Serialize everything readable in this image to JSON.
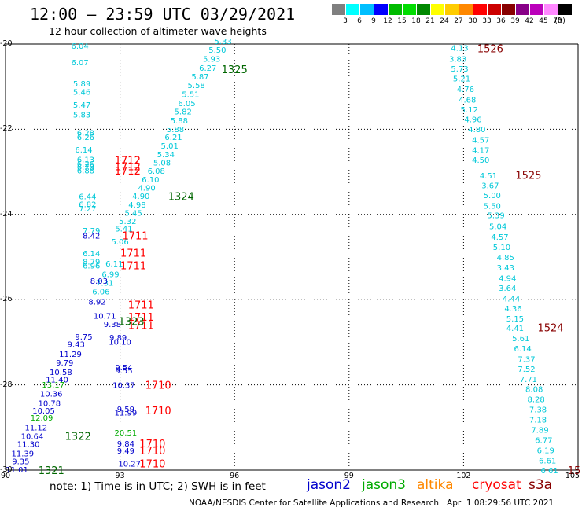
{
  "header": {
    "title": "12:00 – 23:59 UTC 03/29/2021",
    "subtitle": "12 hour collection of altimeter wave heights"
  },
  "scale": {
    "colors": [
      "#7f7f7f",
      "#00ffff",
      "#00bfff",
      "#0000ff",
      "#00bb00",
      "#00dd00",
      "#008800",
      "#ffff00",
      "#ffcc00",
      "#ff8800",
      "#ff0000",
      "#cc0000",
      "#880000",
      "#880088",
      "#bb00bb",
      "#ff88ff",
      "#000000"
    ],
    "labels": [
      "3",
      "6",
      "9",
      "12",
      "15",
      "18",
      "21",
      "24",
      "27",
      "30",
      "33",
      "36",
      "39",
      "42",
      "45",
      "70",
      "(ft)"
    ]
  },
  "axes": {
    "lat_labels": [
      "-20",
      "-22",
      "-24",
      "-26",
      "-28",
      "-30"
    ],
    "lon_labels": [
      "90",
      "93",
      "96",
      "99",
      "102",
      "105"
    ]
  },
  "colors": {
    "jason2": "#0000cc",
    "jason3": "#00aa00",
    "altika": "#ff8800",
    "cryosat": "#ff0000",
    "s3a": "#880000",
    "cyan": "#00c8d8",
    "darkgreen": "#006600"
  },
  "tracks": [
    {
      "color": "#00c8d8",
      "values": [
        {
          "t": "5.33",
          "lon": 95.7,
          "lat": -19.93
        },
        {
          "t": "5.50",
          "lon": 95.55,
          "lat": -20.13
        },
        {
          "t": "5.93",
          "lon": 95.4,
          "lat": -20.34
        },
        {
          "t": "6.27",
          "lon": 95.3,
          "lat": -20.55
        },
        {
          "t": "5.87",
          "lon": 95.1,
          "lat": -20.76
        },
        {
          "t": "5.58",
          "lon": 95.0,
          "lat": -20.96
        },
        {
          "t": "5.51",
          "lon": 94.85,
          "lat": -21.17
        },
        {
          "t": "6.05",
          "lon": 94.75,
          "lat": -21.38
        },
        {
          "t": "5.82",
          "lon": 94.65,
          "lat": -21.58
        },
        {
          "t": "5.88",
          "lon": 94.55,
          "lat": -21.79
        },
        {
          "t": "5.88",
          "lon": 94.45,
          "lat": -21.99
        },
        {
          "t": "6.21",
          "lon": 94.4,
          "lat": -22.18
        },
        {
          "t": "5.01",
          "lon": 94.3,
          "lat": -22.38
        },
        {
          "t": "5.34",
          "lon": 94.2,
          "lat": -22.58
        },
        {
          "t": "5.08",
          "lon": 94.1,
          "lat": -22.78
        },
        {
          "t": "6.08",
          "lon": 93.95,
          "lat": -22.97
        },
        {
          "t": "6.10",
          "lon": 93.8,
          "lat": -23.17
        },
        {
          "t": "4.90",
          "lon": 93.7,
          "lat": -23.37
        },
        {
          "t": "4.90",
          "lon": 93.55,
          "lat": -23.56
        },
        {
          "t": "4.98",
          "lon": 93.45,
          "lat": -23.76
        },
        {
          "t": "5.45",
          "lon": 93.35,
          "lat": -23.96
        },
        {
          "t": "5.32",
          "lon": 93.2,
          "lat": -24.15
        },
        {
          "t": "5.41",
          "lon": 93.1,
          "lat": -24.33
        },
        {
          "t": "5.06",
          "lon": 93.0,
          "lat": -24.63
        },
        {
          "t": "6.11",
          "lon": 92.85,
          "lat": -25.15
        },
        {
          "t": "6.99",
          "lon": 92.75,
          "lat": -25.4
        },
        {
          "t": "7.31",
          "lon": 92.6,
          "lat": -25.6
        },
        {
          "t": "6.06",
          "lon": 92.5,
          "lat": -25.8
        }
      ]
    },
    {
      "color": "#00c8d8",
      "values": [
        {
          "t": "6.04",
          "lon": 91.95,
          "lat": -20.04
        },
        {
          "t": "6.07",
          "lon": 91.95,
          "lat": -20.42
        },
        {
          "t": "5.89",
          "lon": 92.0,
          "lat": -20.92
        },
        {
          "t": "5.46",
          "lon": 92.0,
          "lat": -21.12
        },
        {
          "t": "5.47",
          "lon": 92.0,
          "lat": -21.42
        },
        {
          "t": "5.83",
          "lon": 92.0,
          "lat": -21.65
        },
        {
          "t": "6.28",
          "lon": 92.1,
          "lat": -22.08
        },
        {
          "t": "6.26",
          "lon": 92.1,
          "lat": -22.18
        },
        {
          "t": "6.14",
          "lon": 92.05,
          "lat": -22.47
        },
        {
          "t": "6.13",
          "lon": 92.1,
          "lat": -22.7
        },
        {
          "t": "6.26",
          "lon": 92.1,
          "lat": -22.8
        },
        {
          "t": "6.79",
          "lon": 92.1,
          "lat": -22.88
        },
        {
          "t": "6.88",
          "lon": 92.1,
          "lat": -22.96
        },
        {
          "t": "6.44",
          "lon": 92.15,
          "lat": -23.57
        },
        {
          "t": "6.82",
          "lon": 92.15,
          "lat": -23.75
        },
        {
          "t": "7.27",
          "lon": 92.15,
          "lat": -23.86
        },
        {
          "t": "7.79",
          "lon": 92.25,
          "lat": -24.37
        },
        {
          "t": "6.14",
          "lon": 92.25,
          "lat": -24.91
        },
        {
          "t": "8.79",
          "lon": 92.25,
          "lat": -25.1
        },
        {
          "t": "6.96",
          "lon": 92.25,
          "lat": -25.19
        }
      ]
    },
    {
      "color": "#0000cc",
      "values": [
        {
          "t": "8.42",
          "lon": 92.25,
          "lat": -24.49
        },
        {
          "t": "8.03",
          "lon": 92.45,
          "lat": -25.55
        },
        {
          "t": "8.92",
          "lon": 92.4,
          "lat": -26.04
        },
        {
          "t": "10.71",
          "lon": 92.6,
          "lat": -26.37
        },
        {
          "t": "9.38",
          "lon": 92.8,
          "lat": -26.57
        },
        {
          "t": "9.89",
          "lon": 92.95,
          "lat": -26.88
        },
        {
          "t": "10.10",
          "lon": 93.0,
          "lat": -26.98
        },
        {
          "t": "9.75",
          "lon": 92.05,
          "lat": -26.86
        },
        {
          "t": "9.43",
          "lon": 91.85,
          "lat": -27.04
        },
        {
          "t": "11.29",
          "lon": 91.7,
          "lat": -27.27
        },
        {
          "t": "9.79",
          "lon": 91.55,
          "lat": -27.47
        },
        {
          "t": "10.58",
          "lon": 91.45,
          "lat": -27.69
        },
        {
          "t": "11.40",
          "lon": 91.35,
          "lat": -27.87
        },
        {
          "t": "10.36",
          "lon": 91.2,
          "lat": -28.2
        },
        {
          "t": "10.78",
          "lon": 91.15,
          "lat": -28.42
        },
        {
          "t": "10.05",
          "lon": 91.0,
          "lat": -28.6
        },
        {
          "t": "11.12",
          "lon": 90.8,
          "lat": -28.99
        },
        {
          "t": "10.64",
          "lon": 90.7,
          "lat": -29.2
        },
        {
          "t": "11.30",
          "lon": 90.6,
          "lat": -29.38
        },
        {
          "t": "11.39",
          "lon": 90.45,
          "lat": -29.6
        },
        {
          "t": "9.35",
          "lon": 90.4,
          "lat": -29.79
        },
        {
          "t": "11.01",
          "lon": 90.3,
          "lat": -29.98
        }
      ]
    },
    {
      "color": "#00aa00",
      "values": [
        {
          "t": "13.17",
          "lon": 91.25,
          "lat": -27.99
        },
        {
          "t": "12.09",
          "lon": 90.95,
          "lat": -28.76
        }
      ]
    },
    {
      "color": "#0000cc",
      "values": [
        {
          "t": "9.54",
          "lon": 93.1,
          "lat": -27.58
        },
        {
          "t": "9.55",
          "lon": 93.1,
          "lat": -27.66
        },
        {
          "t": "10.37",
          "lon": 93.1,
          "lat": -28.0
        },
        {
          "t": "9.59",
          "lon": 93.15,
          "lat": -28.56
        },
        {
          "t": "11.99",
          "lon": 93.15,
          "lat": -28.64
        },
        {
          "t": "9.84",
          "lon": 93.15,
          "lat": -29.37
        },
        {
          "t": "9.49",
          "lon": 93.15,
          "lat": -29.54
        },
        {
          "t": "10.27",
          "lon": 93.25,
          "lat": -29.84
        }
      ]
    },
    {
      "color": "#00aa00",
      "values": [
        {
          "t": "20.51",
          "lon": 93.15,
          "lat": -29.11
        }
      ]
    },
    {
      "color": "#00c8d8",
      "values": [
        {
          "t": "4.13",
          "lon": 101.9,
          "lat": -20.08
        },
        {
          "t": "3.83",
          "lon": 101.85,
          "lat": -20.34
        },
        {
          "t": "5.73",
          "lon": 101.9,
          "lat": -20.57
        },
        {
          "t": "5.21",
          "lon": 101.95,
          "lat": -20.8
        },
        {
          "t": "4.76",
          "lon": 102.05,
          "lat": -21.05
        },
        {
          "t": "4.68",
          "lon": 102.1,
          "lat": -21.3
        },
        {
          "t": "5.12",
          "lon": 102.15,
          "lat": -21.53
        },
        {
          "t": "4.96",
          "lon": 102.25,
          "lat": -21.76
        },
        {
          "t": "4.80",
          "lon": 102.35,
          "lat": -21.99
        },
        {
          "t": "4.57",
          "lon": 102.45,
          "lat": -22.24
        },
        {
          "t": "4.17",
          "lon": 102.45,
          "lat": -22.48
        },
        {
          "t": "4.50",
          "lon": 102.45,
          "lat": -22.71
        },
        {
          "t": "4.51",
          "lon": 102.65,
          "lat": -23.08
        },
        {
          "t": "3.67",
          "lon": 102.7,
          "lat": -23.31
        },
        {
          "t": "5.00",
          "lon": 102.75,
          "lat": -23.54
        },
        {
          "t": "5.50",
          "lon": 102.75,
          "lat": -23.79
        },
        {
          "t": "5.39",
          "lon": 102.85,
          "lat": -24.01
        },
        {
          "t": "5.04",
          "lon": 102.9,
          "lat": -24.27
        },
        {
          "t": "4.57",
          "lon": 102.95,
          "lat": -24.52
        },
        {
          "t": "5.10",
          "lon": 103.0,
          "lat": -24.76
        },
        {
          "t": "4.85",
          "lon": 103.1,
          "lat": -25.0
        },
        {
          "t": "3.43",
          "lon": 103.1,
          "lat": -25.24
        },
        {
          "t": "4.94",
          "lon": 103.15,
          "lat": -25.49
        },
        {
          "t": "3.64",
          "lon": 103.15,
          "lat": -25.72
        },
        {
          "t": "4.44",
          "lon": 103.25,
          "lat": -25.97
        },
        {
          "t": "4.36",
          "lon": 103.3,
          "lat": -26.2
        },
        {
          "t": "5.15",
          "lon": 103.35,
          "lat": -26.44
        },
        {
          "t": "4.41",
          "lon": 103.35,
          "lat": -26.66
        },
        {
          "t": "5.61",
          "lon": 103.5,
          "lat": -26.9
        },
        {
          "t": "6.14",
          "lon": 103.55,
          "lat": -27.14
        },
        {
          "t": "7.37",
          "lon": 103.65,
          "lat": -27.39
        },
        {
          "t": "7.52",
          "lon": 103.65,
          "lat": -27.62
        },
        {
          "t": "7.71",
          "lon": 103.7,
          "lat": -27.86
        },
        {
          "t": "8.08",
          "lon": 103.85,
          "lat": -28.09
        },
        {
          "t": "8.28",
          "lon": 103.9,
          "lat": -28.33
        },
        {
          "t": "7.38",
          "lon": 103.95,
          "lat": -28.57
        },
        {
          "t": "7.18",
          "lon": 103.95,
          "lat": -28.81
        },
        {
          "t": "7.89",
          "lon": 104.0,
          "lat": -29.05
        },
        {
          "t": "6.77",
          "lon": 104.1,
          "lat": -29.29
        },
        {
          "t": "6.19",
          "lon": 104.15,
          "lat": -29.53
        },
        {
          "t": "6.61",
          "lon": 104.2,
          "lat": -29.77
        },
        {
          "t": "6.61",
          "lon": 104.25,
          "lat": -30.0
        }
      ]
    }
  ],
  "time_labels": [
    {
      "t": "1526",
      "color": "#880000",
      "lon": 102.7,
      "lat": -20.1
    },
    {
      "t": "1525",
      "color": "#880000",
      "lon": 103.7,
      "lat": -23.07
    },
    {
      "t": "1524",
      "color": "#880000",
      "lon": 104.95,
      "lat": -26.65
    },
    {
      "t": "15",
      "color": "#880000",
      "lon": 105.2,
      "lat": -30.0
    },
    {
      "t": "1325",
      "color": "#006600",
      "lon": 96.0,
      "lat": -20.59
    },
    {
      "t": "1324",
      "color": "#006600",
      "lon": 94.6,
      "lat": -23.57
    },
    {
      "t": "1712",
      "color": "#ff0000",
      "lon": 93.2,
      "lat": -22.72
    },
    {
      "t": "1712",
      "color": "#ff0000",
      "lon": 93.2,
      "lat": -22.87
    },
    {
      "t": "1712",
      "color": "#ff0000",
      "lon": 93.2,
      "lat": -22.97
    },
    {
      "t": "1711",
      "color": "#ff0000",
      "lon": 93.4,
      "lat": -24.49
    },
    {
      "t": "1711",
      "color": "#ff0000",
      "lon": 93.35,
      "lat": -24.9
    },
    {
      "t": "1711",
      "color": "#ff0000",
      "lon": 93.35,
      "lat": -25.19
    },
    {
      "t": "1711",
      "color": "#ff0000",
      "lon": 93.55,
      "lat": -26.12
    },
    {
      "t": "1711",
      "color": "#ff0000",
      "lon": 93.55,
      "lat": -26.4
    },
    {
      "t": "1711",
      "color": "#ff0000",
      "lon": 93.55,
      "lat": -26.6
    },
    {
      "t": "1323",
      "color": "#006600",
      "lon": 93.3,
      "lat": -26.5
    },
    {
      "t": "1710",
      "color": "#ff0000",
      "lon": 94.0,
      "lat": -28.0
    },
    {
      "t": "1710",
      "color": "#ff0000",
      "lon": 94.0,
      "lat": -28.6
    },
    {
      "t": "1710",
      "color": "#ff0000",
      "lon": 93.85,
      "lat": -29.37
    },
    {
      "t": "1710",
      "color": "#ff0000",
      "lon": 93.85,
      "lat": -29.54
    },
    {
      "t": "1710",
      "color": "#ff0000",
      "lon": 93.85,
      "lat": -29.84
    },
    {
      "t": "1322",
      "color": "#006600",
      "lon": 91.9,
      "lat": -29.2
    },
    {
      "t": "1321",
      "color": "#006600",
      "lon": 91.2,
      "lat": -30.0
    }
  ],
  "footer": {
    "note": "note: 1) Time is in UTC; 2) SWH is in feet",
    "satellites": [
      {
        "name": "jason2",
        "color": "#0000cc"
      },
      {
        "name": "jason3",
        "color": "#00aa00"
      },
      {
        "name": "altika",
        "color": "#ff8800"
      },
      {
        "name": "cryosat",
        "color": "#ff0000"
      },
      {
        "name": "s3a",
        "color": "#880000"
      }
    ],
    "credit": "NOAA/NESDIS Center for Satellite Applications and Research   Apr  1 08:29:56 UTC 2021"
  }
}
